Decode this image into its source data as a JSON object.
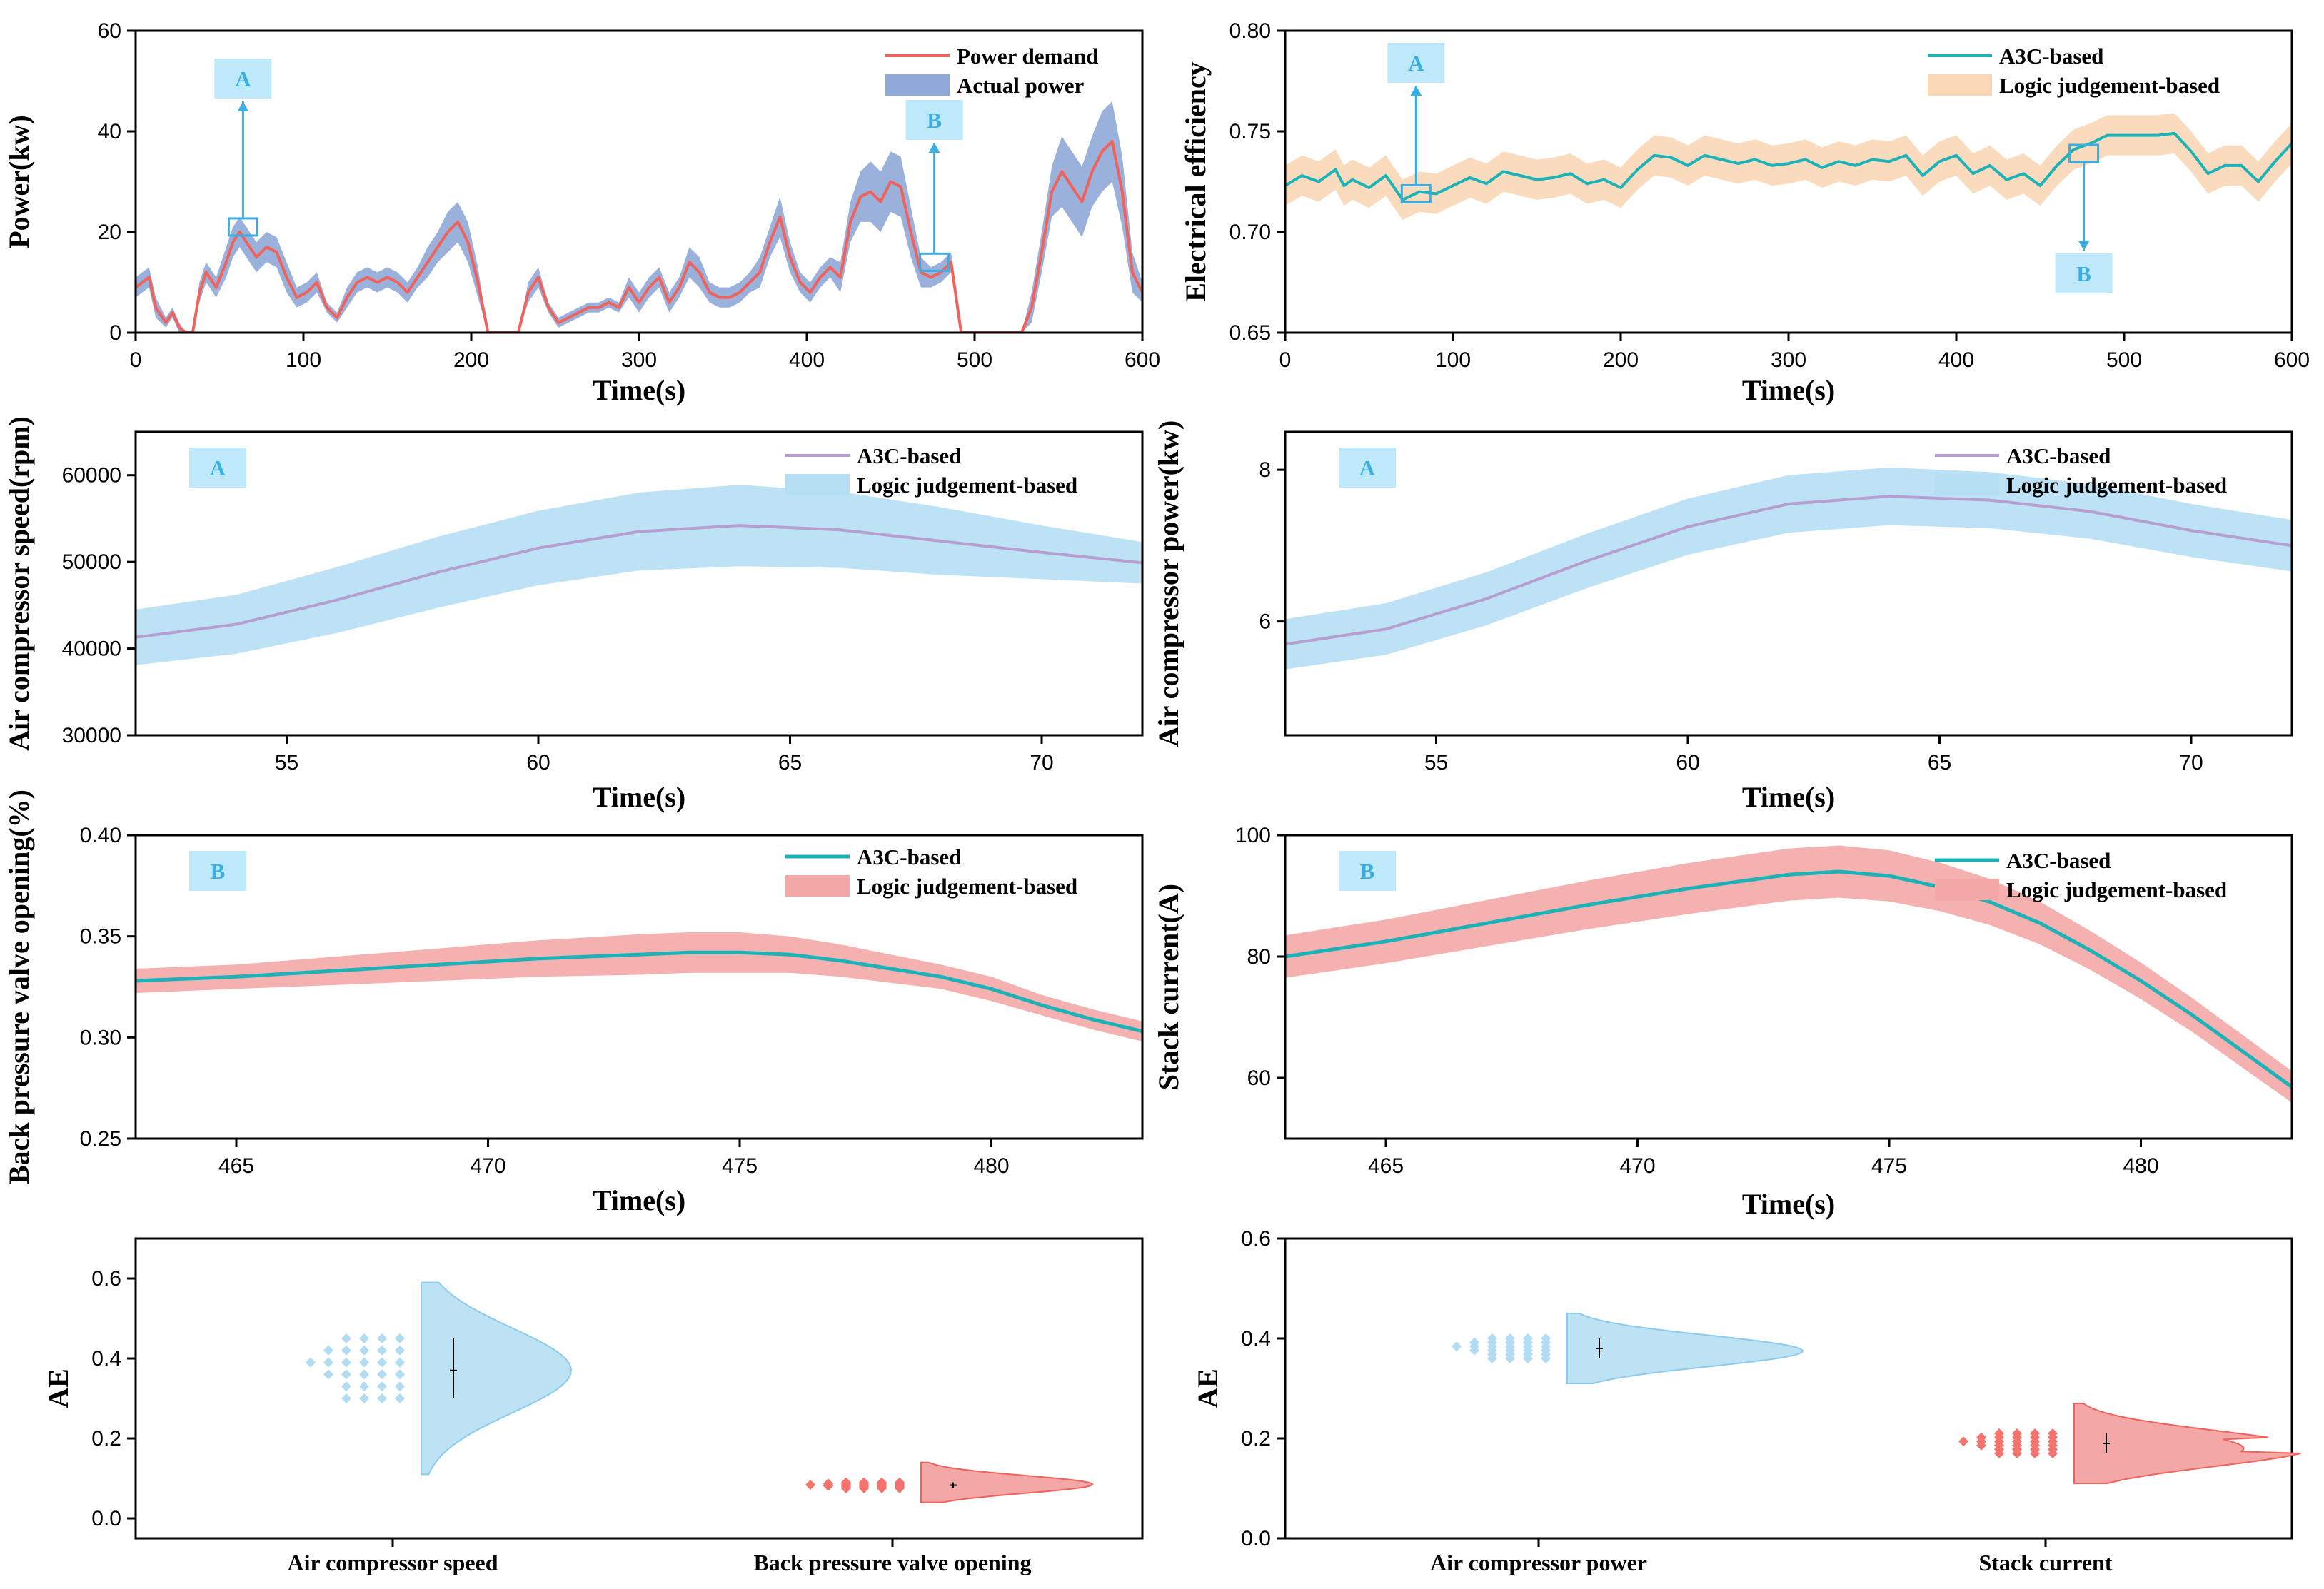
{
  "colors": {
    "red": "#f0625c",
    "red_band": "#f4a7a7",
    "blue_band": "#8fa8d8",
    "teal": "#1bb3b8",
    "orange_band": "#fad7b6",
    "purple": "#b79ed0",
    "light_blue_band": "#b6dff4",
    "light_blue": "#bde2f4",
    "marker": "#3aaee0",
    "marker_fill": "#bde9fa"
  },
  "chart_data": [
    {
      "id": "power",
      "type": "line",
      "title": "",
      "xlabel": "Time(s)",
      "ylabel": "Power(kw)",
      "xlim": [
        0,
        600
      ],
      "ylim": [
        0,
        60
      ],
      "xticks": [
        "0",
        "100",
        "200",
        "300",
        "400",
        "500",
        "600"
      ],
      "yticks": [
        "0",
        "20",
        "40",
        "60"
      ],
      "legend": [
        "Power demand",
        "Actual power"
      ],
      "series": [
        {
          "name": "Power demand",
          "x": [
            0,
            8,
            12,
            18,
            22,
            26,
            30,
            34,
            38,
            42,
            48,
            54,
            58,
            62,
            66,
            72,
            78,
            84,
            90,
            96,
            102,
            108,
            114,
            120,
            126,
            132,
            138,
            144,
            150,
            156,
            162,
            168,
            174,
            180,
            186,
            192,
            198,
            204,
            210,
            216,
            222,
            228,
            234,
            240,
            246,
            252,
            258,
            264,
            270,
            276,
            282,
            288,
            294,
            300,
            306,
            312,
            318,
            324,
            330,
            336,
            342,
            348,
            354,
            360,
            366,
            372,
            378,
            384,
            390,
            396,
            402,
            408,
            414,
            420,
            426,
            432,
            438,
            444,
            450,
            456,
            462,
            468,
            474,
            480,
            486,
            492,
            498,
            504,
            510,
            516,
            522,
            528,
            534,
            540,
            546,
            552,
            558,
            564,
            570,
            576,
            582,
            588,
            594,
            600
          ],
          "y": [
            9,
            11,
            5,
            2,
            4,
            1,
            0,
            0,
            8,
            12,
            9,
            14,
            18,
            20,
            18,
            15,
            17,
            16,
            11,
            7,
            8,
            10,
            5,
            3,
            7,
            10,
            11,
            10,
            11,
            10,
            8,
            11,
            14,
            17,
            20,
            22,
            18,
            10,
            0,
            0,
            0,
            0,
            8,
            11,
            5,
            2,
            3,
            4,
            5,
            5,
            6,
            5,
            9,
            6,
            9,
            11,
            6,
            9,
            14,
            12,
            8,
            7,
            7,
            8,
            10,
            12,
            18,
            23,
            15,
            10,
            8,
            11,
            13,
            11,
            22,
            27,
            28,
            26,
            30,
            29,
            20,
            12,
            11,
            12,
            14,
            0,
            0,
            0,
            0,
            0,
            0,
            0,
            5,
            16,
            28,
            32,
            29,
            26,
            32,
            36,
            38,
            28,
            12,
            8
          ],
          "band_halfwidth": [
            2,
            2,
            2,
            1,
            1,
            1,
            0,
            0,
            2,
            2,
            2,
            3,
            3,
            3,
            3,
            3,
            3,
            3,
            3,
            2,
            2,
            2,
            1,
            1,
            2,
            2,
            2,
            2,
            2,
            2,
            2,
            2,
            3,
            3,
            4,
            4,
            4,
            3,
            0,
            0,
            0,
            0,
            2,
            2,
            1,
            1,
            1,
            1,
            1,
            1,
            1,
            1,
            2,
            2,
            2,
            2,
            2,
            2,
            3,
            3,
            2,
            2,
            2,
            2,
            2,
            3,
            3,
            4,
            3,
            2,
            2,
            2,
            2,
            3,
            4,
            5,
            6,
            6,
            6,
            6,
            5,
            3,
            2,
            2,
            2,
            0,
            0,
            0,
            0,
            0,
            0,
            0,
            3,
            4,
            5,
            7,
            7,
            7,
            7,
            8,
            8,
            7,
            4,
            2
          ]
        }
      ],
      "markers": [
        {
          "label": "A",
          "x": 64,
          "y": 21
        },
        {
          "label": "B",
          "x": 476,
          "y": 14
        }
      ]
    },
    {
      "id": "efficiency",
      "type": "line",
      "xlabel": "Time(s)",
      "ylabel": "Electrical efficiency",
      "xlim": [
        0,
        600
      ],
      "ylim": [
        0.65,
        0.8
      ],
      "xticks": [
        "0",
        "100",
        "200",
        "300",
        "400",
        "500",
        "600"
      ],
      "yticks": [
        "0.65",
        "0.70",
        "0.75",
        "0.80"
      ],
      "legend": [
        "A3C-based",
        "Logic judgement-based"
      ],
      "series": [
        {
          "name": "A3C-based",
          "x": [
            0,
            10,
            20,
            30,
            35,
            40,
            50,
            60,
            70,
            80,
            90,
            100,
            110,
            120,
            130,
            140,
            150,
            160,
            170,
            180,
            190,
            200,
            210,
            220,
            230,
            240,
            250,
            260,
            270,
            280,
            290,
            300,
            310,
            320,
            330,
            340,
            350,
            360,
            370,
            380,
            390,
            400,
            410,
            420,
            430,
            440,
            450,
            460,
            470,
            480,
            490,
            500,
            510,
            520,
            530,
            540,
            550,
            560,
            570,
            580,
            590,
            600
          ],
          "y": [
            0.723,
            0.728,
            0.725,
            0.731,
            0.723,
            0.726,
            0.722,
            0.728,
            0.716,
            0.72,
            0.719,
            0.723,
            0.727,
            0.724,
            0.73,
            0.728,
            0.726,
            0.727,
            0.729,
            0.724,
            0.726,
            0.722,
            0.731,
            0.738,
            0.737,
            0.733,
            0.738,
            0.736,
            0.734,
            0.736,
            0.733,
            0.734,
            0.736,
            0.732,
            0.735,
            0.733,
            0.736,
            0.735,
            0.738,
            0.728,
            0.735,
            0.738,
            0.729,
            0.733,
            0.726,
            0.729,
            0.723,
            0.733,
            0.741,
            0.744,
            0.748,
            0.748,
            0.748,
            0.748,
            0.749,
            0.74,
            0.729,
            0.733,
            0.733,
            0.725,
            0.735,
            0.744
          ],
          "band_halfwidth": 0.01
        }
      ],
      "markers": [
        {
          "label": "A",
          "x": 78,
          "y": 0.719
        },
        {
          "label": "B",
          "x": 476,
          "y": 0.739
        }
      ]
    },
    {
      "id": "ac_speed",
      "type": "line",
      "xlabel": "Time(s)",
      "ylabel": "Air compressor speed(rpm)",
      "xlim": [
        52,
        72
      ],
      "ylim": [
        30000,
        65000
      ],
      "xticks": [
        "55",
        "60",
        "65",
        "70"
      ],
      "yticks": [
        "30000",
        "40000",
        "50000",
        "60000"
      ],
      "legend": [
        "A3C-based",
        "Logic judgement-based"
      ],
      "series": [
        {
          "name": "A3C-based",
          "x": [
            52,
            54,
            56,
            58,
            60,
            62,
            64,
            66,
            68,
            70,
            72
          ],
          "y": [
            41300,
            42800,
            45600,
            48800,
            51600,
            53500,
            54200,
            53700,
            52400,
            51100,
            49900
          ],
          "band_halfwidth": [
            3200,
            3400,
            3800,
            4100,
            4300,
            4500,
            4700,
            4400,
            3900,
            3100,
            2400
          ]
        }
      ],
      "markers": [
        {
          "label": "A"
        }
      ]
    },
    {
      "id": "ac_power",
      "type": "line",
      "xlabel": "Time(s)",
      "ylabel": "Air compressor power(kw)",
      "xlim": [
        52,
        72
      ],
      "ylim": [
        4.5,
        8.5
      ],
      "xticks": [
        "55",
        "60",
        "65",
        "70"
      ],
      "yticks": [
        "6",
        "8"
      ],
      "legend": [
        "A3C-based",
        "Logic judgement-based"
      ],
      "series": [
        {
          "name": "A3C-based",
          "x": [
            52,
            54,
            56,
            58,
            60,
            62,
            64,
            66,
            68,
            70,
            72
          ],
          "y": [
            5.7,
            5.9,
            6.3,
            6.8,
            7.25,
            7.55,
            7.65,
            7.6,
            7.45,
            7.2,
            7.0
          ],
          "band_halfwidth": [
            0.33,
            0.34,
            0.35,
            0.36,
            0.37,
            0.38,
            0.38,
            0.37,
            0.36,
            0.35,
            0.34
          ]
        }
      ],
      "markers": [
        {
          "label": "A"
        }
      ]
    },
    {
      "id": "bp_valve",
      "type": "line",
      "xlabel": "Time(s)",
      "ylabel": "Back pressure valve opening(%)",
      "xlim": [
        463,
        483
      ],
      "ylim": [
        0.25,
        0.4
      ],
      "xticks": [
        "465",
        "470",
        "475",
        "480"
      ],
      "yticks": [
        "0.25",
        "0.30",
        "0.35",
        "0.40"
      ],
      "legend": [
        "A3C-based",
        "Logic judgement-based"
      ],
      "series": [
        {
          "name": "A3C-based",
          "x": [
            463,
            465,
            467,
            469,
            471,
            473,
            474,
            475,
            476,
            477,
            478,
            479,
            480,
            481,
            482,
            483
          ],
          "y": [
            0.328,
            0.33,
            0.333,
            0.336,
            0.339,
            0.341,
            0.342,
            0.342,
            0.341,
            0.338,
            0.334,
            0.33,
            0.324,
            0.316,
            0.309,
            0.303
          ],
          "band_halfwidth": [
            0.006,
            0.006,
            0.007,
            0.008,
            0.009,
            0.01,
            0.01,
            0.01,
            0.009,
            0.008,
            0.007,
            0.006,
            0.006,
            0.005,
            0.005,
            0.005
          ]
        }
      ],
      "markers": [
        {
          "label": "B"
        }
      ]
    },
    {
      "id": "stack_current",
      "type": "line",
      "xlabel": "Time(s)",
      "ylabel": "Stack current(A)",
      "xlim": [
        463,
        483
      ],
      "ylim": [
        50,
        100
      ],
      "xticks": [
        "465",
        "470",
        "475",
        "480"
      ],
      "yticks": [
        "60",
        "80",
        "100"
      ],
      "legend": [
        "A3C-based",
        "Logic judgement-based"
      ],
      "series": [
        {
          "name": "A3C-based",
          "x": [
            463,
            465,
            467,
            469,
            471,
            473,
            474,
            475,
            476,
            477,
            478,
            479,
            480,
            481,
            482,
            483
          ],
          "y": [
            80,
            82.5,
            85.5,
            88.5,
            91.2,
            93.5,
            94,
            93.3,
            91.5,
            89,
            85.5,
            81,
            76,
            70.5,
            64.5,
            58.5
          ],
          "band_halfwidth": [
            3.5,
            3.6,
            3.8,
            4,
            4.2,
            4.3,
            4.3,
            4.2,
            4,
            3.8,
            3.5,
            3.2,
            3,
            2.8,
            2.7,
            2.6
          ]
        }
      ],
      "markers": [
        {
          "label": "B"
        }
      ]
    },
    {
      "id": "ae_left",
      "type": "violin",
      "xlabel": "",
      "ylabel": "AE",
      "ylim": [
        -0.05,
        0.7
      ],
      "yticks": [
        "0.0",
        "0.2",
        "0.4",
        "0.6"
      ],
      "categories": [
        "Air compressor speed",
        "Back pressure valve opening"
      ],
      "series": [
        {
          "name": "Air compressor speed",
          "median": 0.37,
          "q1": 0.3,
          "q3": 0.45,
          "min": 0.11,
          "max": 0.59,
          "mode": 0.37,
          "color": "blue"
        },
        {
          "name": "Back pressure valve opening",
          "median": 0.083,
          "q1": 0.075,
          "q3": 0.09,
          "min": 0.04,
          "max": 0.14,
          "mode": 0.085,
          "color": "red"
        }
      ]
    },
    {
      "id": "ae_right",
      "type": "violin",
      "xlabel": "",
      "ylabel": "AE",
      "ylim": [
        0.0,
        0.6
      ],
      "yticks": [
        "0.0",
        "0.2",
        "0.4",
        "0.6"
      ],
      "categories": [
        "Air compressor power",
        "Stack current"
      ],
      "series": [
        {
          "name": "Air compressor power",
          "median": 0.38,
          "q1": 0.36,
          "q3": 0.4,
          "min": 0.31,
          "max": 0.45,
          "mode": 0.375,
          "color": "blue"
        },
        {
          "name": "Stack current",
          "median": 0.19,
          "q1": 0.17,
          "q3": 0.21,
          "min": 0.11,
          "max": 0.27,
          "mode": 0.18,
          "color": "red"
        }
      ]
    }
  ]
}
